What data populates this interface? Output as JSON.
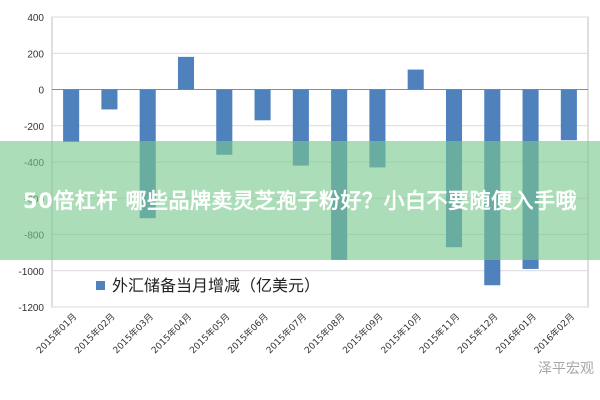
{
  "chart_data": {
    "type": "bar",
    "categories": [
      "2015年01月",
      "2015年02月",
      "2015年03月",
      "2015年04月",
      "2015年05月",
      "2015年06月",
      "2015年07月",
      "2015年08月",
      "2015年09月",
      "2015年10月",
      "2015年11月",
      "2015年12月",
      "2016年01月",
      "2016年02月"
    ],
    "series": [
      {
        "name": "外汇储备当月增减（亿美元）",
        "values": [
          -290,
          -110,
          -710,
          180,
          -360,
          -170,
          -420,
          -940,
          -430,
          110,
          -870,
          -1080,
          -990,
          -280
        ]
      }
    ],
    "ylim": [
      -1200,
      400
    ],
    "yticks": [
      -1200,
      -1000,
      -800,
      -600,
      -400,
      -200,
      0,
      200,
      400
    ],
    "legend_position": "bottom-left",
    "grid": true,
    "bar_color": "#4f81bd"
  },
  "banner": {
    "text": "50倍杠杆 哪些品牌卖灵芝孢子粉好？小白不要随便入手哦"
  },
  "watermark": {
    "text": "泽平宏观"
  }
}
